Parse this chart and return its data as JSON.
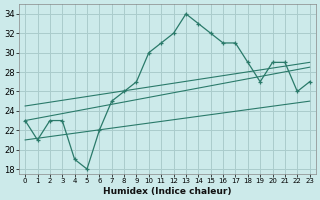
{
  "xlabel": "Humidex (Indice chaleur)",
  "bg_color": "#cceaea",
  "grid_color": "#aacccc",
  "line_color": "#2a7a6a",
  "xlim": [
    -0.5,
    23.5
  ],
  "ylim": [
    17.5,
    35
  ],
  "yticks": [
    18,
    20,
    22,
    24,
    26,
    28,
    30,
    32,
    34
  ],
  "xticks": [
    0,
    1,
    2,
    3,
    4,
    5,
    6,
    7,
    8,
    9,
    10,
    11,
    12,
    13,
    14,
    15,
    16,
    17,
    18,
    19,
    20,
    21,
    22,
    23
  ],
  "series1": [
    23,
    21,
    23,
    23,
    19,
    18,
    22,
    25,
    26,
    27,
    30,
    31,
    32,
    34,
    33,
    32,
    31,
    31,
    29,
    27,
    29,
    29,
    26,
    27
  ],
  "line1_x": [
    0,
    23
  ],
  "line1_y": [
    21,
    25
  ],
  "line2_x": [
    0,
    23
  ],
  "line2_y": [
    23,
    28.5
  ],
  "line3_x": [
    0,
    23
  ],
  "line3_y": [
    24.5,
    29
  ]
}
